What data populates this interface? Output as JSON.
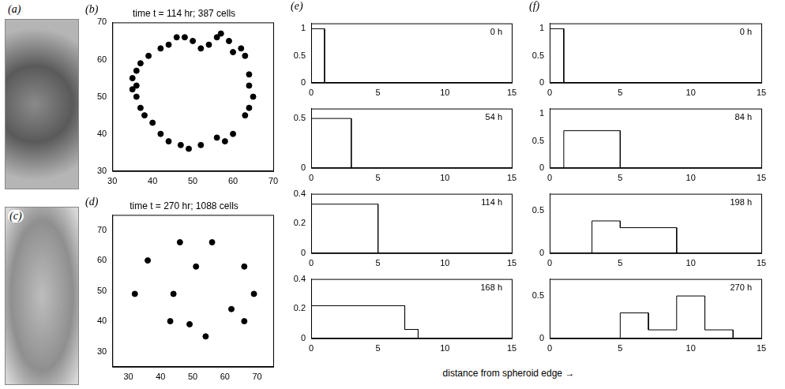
{
  "images": [
    {
      "panel_label": "(a)"
    },
    {
      "panel_label": "(c)"
    }
  ],
  "shared_xlabel": "distance from spheroid edge →",
  "chart_data": [
    {
      "panel_label": "(b)",
      "type": "scatter",
      "title": "time t = 114 hr; 387 cells",
      "xlim": [
        30,
        70
      ],
      "xticks": [
        30,
        40,
        50,
        60,
        70
      ],
      "ylim": [
        30,
        70
      ],
      "yticks": [
        30,
        40,
        50,
        60,
        70
      ],
      "series": [
        {
          "color": "#000000",
          "marker": "circle",
          "x": [
            35,
            35,
            36,
            36,
            37,
            37,
            38,
            39,
            36,
            42,
            44,
            46,
            48,
            50,
            52,
            54,
            56,
            57,
            59,
            60,
            62,
            63,
            64,
            64,
            65,
            64,
            63,
            60,
            58,
            56,
            52,
            49,
            47,
            44,
            42,
            40
          ],
          "values": [
            52,
            55,
            50,
            57,
            47,
            59,
            45,
            61,
            53,
            63,
            64,
            66,
            66,
            65,
            63,
            64,
            66,
            67,
            65,
            62,
            63,
            61,
            56,
            53,
            50,
            47,
            45,
            40,
            38,
            39,
            37,
            36,
            37,
            38,
            40,
            43
          ]
        }
      ]
    },
    {
      "panel_label": "(d)",
      "type": "scatter",
      "title": "time t = 270 hr; 1088 cells",
      "xlim": [
        25,
        75
      ],
      "xticks": [
        30,
        40,
        50,
        60,
        70
      ],
      "ylim": [
        25,
        75
      ],
      "yticks": [
        30,
        40,
        50,
        60,
        70
      ],
      "series": [
        {
          "color": "#000000",
          "marker": "circle",
          "x": [
            36,
            56,
            32,
            44,
            51,
            43,
            49,
            66,
            69,
            62,
            66,
            54,
            46
          ],
          "values": [
            60,
            66,
            49,
            49,
            58,
            40,
            39,
            58,
            49,
            44,
            40,
            35,
            66
          ]
        }
      ]
    },
    {
      "panel_label": "(e)",
      "type": "histogram",
      "annotation": "0 h",
      "bins": [
        0,
        1
      ],
      "counts": [
        1
      ],
      "xlim": [
        0,
        15
      ],
      "xticks": [
        0,
        5,
        10,
        15
      ],
      "ylim": [
        0,
        1.1
      ],
      "yticks": [
        0,
        0.5,
        1
      ],
      "color": "#000000",
      "line_style": "solid"
    },
    {
      "type": "histogram",
      "annotation": "54 h",
      "bins": [
        0,
        3
      ],
      "counts": [
        0.5
      ],
      "xlim": [
        0,
        15
      ],
      "xticks": [
        0,
        5,
        10,
        15
      ],
      "ylim": [
        0,
        0.6
      ],
      "yticks": [
        0,
        0.5
      ],
      "color": "#000000",
      "line_style": "solid"
    },
    {
      "type": "histogram",
      "annotation": "114 h",
      "bins": [
        0,
        5
      ],
      "counts": [
        0.33
      ],
      "xlim": [
        0,
        15
      ],
      "xticks": [
        0,
        5,
        10,
        15
      ],
      "ylim": [
        0,
        0.4
      ],
      "yticks": [
        0,
        0.2,
        0.4
      ],
      "color": "#000000",
      "line_style": "solid"
    },
    {
      "type": "histogram",
      "annotation": "168 h",
      "bins": [
        0,
        7,
        8
      ],
      "counts": [
        0.22,
        0.06
      ],
      "xlim": [
        0,
        15
      ],
      "xticks": [
        0,
        5,
        10,
        15
      ],
      "ylim": [
        0,
        0.4
      ],
      "yticks": [
        0,
        0.2,
        0.4
      ],
      "color": "#000000",
      "line_style": "solid"
    },
    {
      "panel_label": "(f)",
      "type": "histogram",
      "annotation": "0 h",
      "bins": [
        0,
        1
      ],
      "counts": [
        1
      ],
      "xlim": [
        0,
        15
      ],
      "xticks": [
        0,
        5,
        10,
        15
      ],
      "ylim": [
        0,
        1.1
      ],
      "yticks": [
        0,
        0.5,
        1
      ],
      "color": "#000000",
      "line_style": "solid"
    },
    {
      "type": "histogram",
      "annotation": "84 h",
      "bins": [
        1,
        5
      ],
      "counts": [
        0.69
      ],
      "xlim": [
        0,
        15
      ],
      "xticks": [
        0,
        5,
        10,
        15
      ],
      "ylim": [
        0,
        1.1
      ],
      "yticks": [
        0,
        0.5,
        1
      ],
      "color": "#000000",
      "line_style": "solid"
    },
    {
      "type": "histogram",
      "annotation": "198 h",
      "bins": [
        3,
        5,
        9
      ],
      "counts": [
        0.38,
        0.3
      ],
      "xlim": [
        0,
        15
      ],
      "xticks": [
        0,
        5,
        10,
        15
      ],
      "ylim": [
        0,
        0.7
      ],
      "yticks": [
        0,
        0.5
      ],
      "color": "#000000",
      "line_style": "solid"
    },
    {
      "type": "histogram",
      "annotation": "270 h",
      "bins": [
        5,
        7,
        9,
        11,
        13
      ],
      "counts": [
        0.3,
        0.1,
        0.5,
        0.1
      ],
      "xlim": [
        0,
        15
      ],
      "xticks": [
        0,
        5,
        10,
        15
      ],
      "ylim": [
        0,
        0.7
      ],
      "yticks": [
        0,
        0.5
      ],
      "color": "#000000",
      "line_style": "solid"
    }
  ]
}
